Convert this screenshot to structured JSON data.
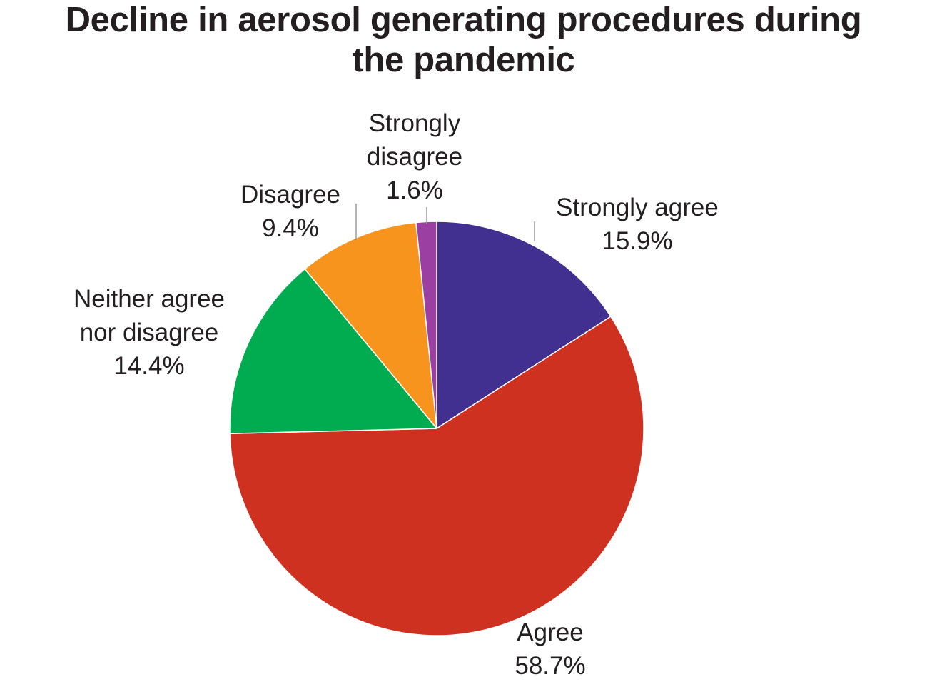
{
  "chart_data": {
    "type": "pie",
    "title": "Decline in aerosol generating procedures during the pandemic",
    "title_lines": [
      "Decline in aerosol generating procedures during",
      "the pandemic"
    ],
    "start_angle_deg": 0,
    "direction": "clockwise",
    "slices": [
      {
        "label": "Strongly agree",
        "label_lines": [
          "Strongly agree"
        ],
        "value": 15.9,
        "value_text": "15.9%",
        "color": "#41308f"
      },
      {
        "label": "Agree",
        "label_lines": [
          "Agree"
        ],
        "value": 58.7,
        "value_text": "58.7%",
        "color": "#cf3120"
      },
      {
        "label": "Neither agree nor disagree",
        "label_lines": [
          "Neither agree",
          "nor disagree"
        ],
        "value": 14.4,
        "value_text": "14.4%",
        "color": "#00ac4f"
      },
      {
        "label": "Disagree",
        "label_lines": [
          "Disagree"
        ],
        "value": 9.4,
        "value_text": "9.4%",
        "color": "#f7941d"
      },
      {
        "label": "Strongly disagree",
        "label_lines": [
          "Strongly",
          "disagree"
        ],
        "value": 1.6,
        "value_text": "1.6%",
        "color": "#9b3fa2"
      }
    ],
    "legend": "none"
  }
}
